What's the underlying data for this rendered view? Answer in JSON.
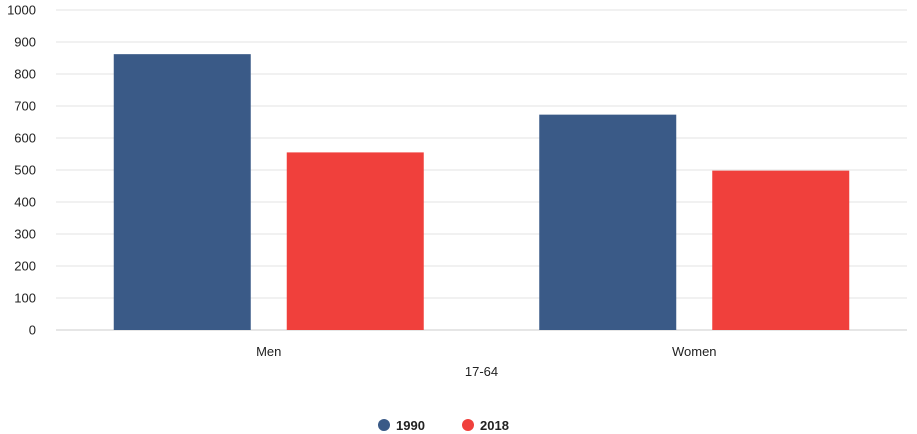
{
  "chart_data": {
    "type": "bar",
    "categories": [
      "Men",
      "Women"
    ],
    "xlabel": "17-64",
    "ylabel": "",
    "title": "",
    "ylim": [
      0,
      1000
    ],
    "yticks": [
      0,
      100,
      200,
      300,
      400,
      500,
      600,
      700,
      800,
      900,
      1000
    ],
    "grid": true,
    "legend_position": "bottom-center",
    "series": [
      {
        "name": "1990",
        "color": "#3a5a87",
        "values": [
          862,
          673
        ]
      },
      {
        "name": "2018",
        "color": "#f0403c",
        "values": [
          555,
          498
        ]
      }
    ]
  }
}
